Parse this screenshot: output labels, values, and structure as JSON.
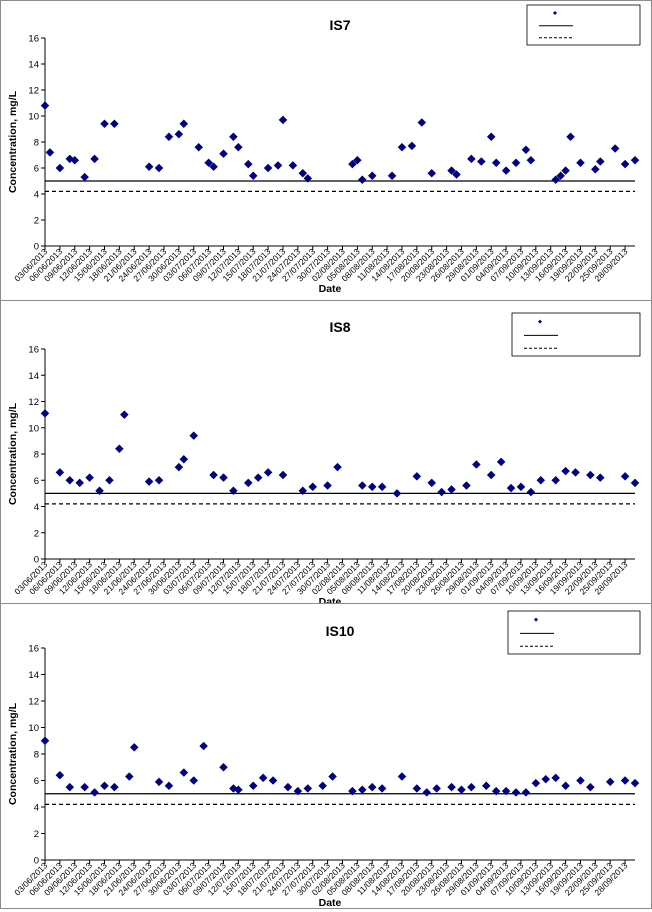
{
  "chart_data": [
    {
      "type": "scatter",
      "title": "IS7",
      "xlabel": "Date",
      "ylabel": "Concentration, mg/L",
      "ylim": [
        0,
        16
      ],
      "yticks": [
        0,
        2,
        4,
        6,
        8,
        10,
        12,
        14,
        16
      ],
      "xlim": [
        "2013-06-03",
        "2013-09-30"
      ],
      "x_tick_labels": [
        "03/06/2013",
        "06/06/2013",
        "09/06/2013",
        "12/06/2013",
        "15/06/2013",
        "18/06/2013",
        "21/06/2013",
        "24/06/2013",
        "27/06/2013",
        "30/06/2013",
        "03/07/2013",
        "06/07/2013",
        "09/07/2013",
        "12/07/2013",
        "15/07/2013",
        "18/07/2013",
        "21/07/2013",
        "24/07/2013",
        "27/07/2013",
        "30/07/2013",
        "02/08/2013",
        "05/08/2013",
        "08/08/2013",
        "11/08/2013",
        "14/08/2013",
        "17/08/2013",
        "20/08/2013",
        "23/08/2013",
        "26/08/2013",
        "29/08/2013",
        "01/09/2013",
        "04/09/2013",
        "07/09/2013",
        "10/09/2013",
        "13/09/2013",
        "16/09/2013",
        "19/09/2013",
        "22/09/2013",
        "25/09/2013",
        "28/09/2013"
      ],
      "grid": false,
      "legend_position": "top-right",
      "legend": [
        "",
        "",
        ""
      ],
      "series": [
        {
          "marker": "diamond",
          "color": "#000080",
          "x": [
            "2013-06-03",
            "2013-06-04",
            "2013-06-06",
            "2013-06-08",
            "2013-06-09",
            "2013-06-11",
            "2013-06-13",
            "2013-06-15",
            "2013-06-17",
            "2013-06-24",
            "2013-06-26",
            "2013-06-28",
            "2013-06-30",
            "2013-07-01",
            "2013-07-04",
            "2013-07-06",
            "2013-07-07",
            "2013-07-09",
            "2013-07-11",
            "2013-07-12",
            "2013-07-14",
            "2013-07-15",
            "2013-07-18",
            "2013-07-20",
            "2013-07-21",
            "2013-07-23",
            "2013-07-25",
            "2013-07-26",
            "2013-08-04",
            "2013-08-05",
            "2013-08-06",
            "2013-08-08",
            "2013-08-12",
            "2013-08-14",
            "2013-08-16",
            "2013-08-18",
            "2013-08-20",
            "2013-08-24",
            "2013-08-25",
            "2013-08-28",
            "2013-08-30",
            "2013-09-01",
            "2013-09-02",
            "2013-09-04",
            "2013-09-06",
            "2013-09-08",
            "2013-09-09",
            "2013-09-14",
            "2013-09-15",
            "2013-09-16",
            "2013-09-17",
            "2013-09-19",
            "2013-09-22",
            "2013-09-23",
            "2013-09-26",
            "2013-09-28",
            "2013-09-30"
          ],
          "y": [
            10.8,
            7.2,
            6.0,
            6.7,
            6.6,
            5.3,
            6.7,
            9.4,
            9.4,
            6.1,
            6.0,
            8.4,
            8.6,
            9.4,
            7.6,
            6.4,
            6.1,
            7.1,
            8.4,
            7.6,
            6.3,
            5.4,
            6.0,
            6.2,
            9.7,
            6.2,
            5.6,
            5.2,
            6.3,
            6.6,
            5.1,
            5.4,
            5.4,
            7.6,
            7.7,
            9.5,
            5.6,
            5.8,
            5.5,
            6.7,
            6.5,
            8.4,
            6.4,
            5.8,
            6.4,
            7.4,
            6.6,
            5.1,
            5.4,
            5.8,
            8.4,
            6.4,
            5.9,
            6.5,
            7.5,
            6.3,
            6.6
          ]
        }
      ],
      "reference_lines": [
        {
          "y": 5.0,
          "style": "solid",
          "color": "#000000"
        },
        {
          "y": 4.2,
          "style": "dashed",
          "color": "#000000"
        }
      ]
    },
    {
      "type": "scatter",
      "title": "IS8",
      "xlabel": "Date",
      "ylabel": "Concentration, mg/L",
      "ylim": [
        0,
        16
      ],
      "yticks": [
        0,
        2,
        4,
        6,
        8,
        10,
        12,
        14,
        16
      ],
      "xlim": [
        "2013-06-03",
        "2013-09-30"
      ],
      "x_tick_labels": [
        "03/06/2013",
        "06/06/2013",
        "09/06/2013",
        "12/06/2013",
        "15/06/2013",
        "18/06/2013",
        "21/06/2013",
        "24/06/2013",
        "27/06/2013",
        "30/06/2013",
        "03/07/2013",
        "06/07/2013",
        "09/07/2013",
        "12/07/2013",
        "15/07/2013",
        "18/07/2013",
        "21/07/2013",
        "24/07/2013",
        "27/07/2013",
        "30/07/2013",
        "02/08/2013",
        "05/08/2013",
        "08/08/2013",
        "11/08/2013",
        "14/08/2013",
        "17/08/2013",
        "20/08/2013",
        "23/08/2013",
        "26/08/2013",
        "29/08/2013",
        "01/09/2013",
        "04/09/2013",
        "07/09/2013",
        "10/09/2013",
        "13/09/2013",
        "16/09/2013",
        "19/09/2013",
        "22/09/2013",
        "25/09/2013",
        "28/09/2013"
      ],
      "grid": false,
      "legend_position": "top-right",
      "legend": [
        "",
        "",
        ""
      ],
      "series": [
        {
          "marker": "diamond",
          "color": "#000080",
          "x": [
            "2013-06-03",
            "2013-06-06",
            "2013-06-08",
            "2013-06-10",
            "2013-06-12",
            "2013-06-14",
            "2013-06-16",
            "2013-06-18",
            "2013-06-19",
            "2013-06-24",
            "2013-06-26",
            "2013-06-30",
            "2013-07-01",
            "2013-07-03",
            "2013-07-07",
            "2013-07-09",
            "2013-07-11",
            "2013-07-14",
            "2013-07-16",
            "2013-07-18",
            "2013-07-21",
            "2013-07-25",
            "2013-07-27",
            "2013-07-30",
            "2013-08-01",
            "2013-08-06",
            "2013-08-08",
            "2013-08-10",
            "2013-08-13",
            "2013-08-17",
            "2013-08-20",
            "2013-08-22",
            "2013-08-24",
            "2013-08-27",
            "2013-08-29",
            "2013-09-01",
            "2013-09-03",
            "2013-09-05",
            "2013-09-07",
            "2013-09-09",
            "2013-09-11",
            "2013-09-14",
            "2013-09-16",
            "2013-09-18",
            "2013-09-21",
            "2013-09-23",
            "2013-09-28",
            "2013-09-30"
          ],
          "y": [
            11.1,
            6.6,
            6.0,
            5.8,
            6.2,
            5.2,
            6.0,
            8.4,
            11.0,
            5.9,
            6.0,
            7.0,
            7.6,
            9.4,
            6.4,
            6.2,
            5.2,
            5.8,
            6.2,
            6.6,
            6.4,
            5.2,
            5.5,
            5.6,
            7.0,
            5.6,
            5.5,
            5.5,
            5.0,
            6.3,
            5.8,
            5.1,
            5.3,
            5.6,
            7.2,
            6.4,
            7.4,
            5.4,
            5.5,
            5.1,
            6.0,
            6.0,
            6.7,
            6.6,
            6.4,
            6.2,
            6.3,
            5.8
          ]
        }
      ],
      "reference_lines": [
        {
          "y": 5.0,
          "style": "solid",
          "color": "#000000"
        },
        {
          "y": 4.2,
          "style": "dashed",
          "color": "#000000"
        }
      ]
    },
    {
      "type": "scatter",
      "title": "IS10",
      "xlabel": "Date",
      "ylabel": "Concentration, mg/L",
      "ylim": [
        0,
        16
      ],
      "yticks": [
        0,
        2,
        4,
        6,
        8,
        10,
        12,
        14,
        16
      ],
      "xlim": [
        "2013-06-03",
        "2013-09-30"
      ],
      "x_tick_labels": [
        "03/06/2013",
        "06/06/2013",
        "09/06/2013",
        "12/06/2013",
        "15/06/2013",
        "18/06/2013",
        "21/06/2013",
        "24/06/2013",
        "27/06/2013",
        "30/06/2013",
        "03/07/2013",
        "06/07/2013",
        "09/07/2013",
        "12/07/2013",
        "15/07/2013",
        "18/07/2013",
        "21/07/2013",
        "24/07/2013",
        "27/07/2013",
        "30/07/2013",
        "02/08/2013",
        "05/08/2013",
        "08/08/2013",
        "11/08/2013",
        "14/08/2013",
        "17/08/2013",
        "20/08/2013",
        "23/08/2013",
        "26/08/2013",
        "29/08/2013",
        "01/09/2013",
        "04/09/2013",
        "07/09/2013",
        "10/09/2013",
        "13/09/2013",
        "16/09/2013",
        "19/09/2013",
        "22/09/2013",
        "25/09/2013",
        "28/09/2013"
      ],
      "grid": false,
      "legend_position": "top-right",
      "legend": [
        "",
        "",
        ""
      ],
      "series": [
        {
          "marker": "diamond",
          "color": "#000080",
          "x": [
            "2013-06-03",
            "2013-06-06",
            "2013-06-08",
            "2013-06-11",
            "2013-06-13",
            "2013-06-15",
            "2013-06-17",
            "2013-06-20",
            "2013-06-21",
            "2013-06-26",
            "2013-06-28",
            "2013-07-01",
            "2013-07-03",
            "2013-07-05",
            "2013-07-09",
            "2013-07-11",
            "2013-07-12",
            "2013-07-15",
            "2013-07-17",
            "2013-07-19",
            "2013-07-22",
            "2013-07-24",
            "2013-07-26",
            "2013-07-29",
            "2013-07-31",
            "2013-08-04",
            "2013-08-06",
            "2013-08-08",
            "2013-08-10",
            "2013-08-14",
            "2013-08-17",
            "2013-08-19",
            "2013-08-21",
            "2013-08-24",
            "2013-08-26",
            "2013-08-28",
            "2013-08-31",
            "2013-09-02",
            "2013-09-04",
            "2013-09-06",
            "2013-09-08",
            "2013-09-10",
            "2013-09-12",
            "2013-09-14",
            "2013-09-16",
            "2013-09-19",
            "2013-09-21",
            "2013-09-25",
            "2013-09-28",
            "2013-09-30"
          ],
          "y": [
            9.0,
            6.4,
            5.5,
            5.5,
            5.1,
            5.6,
            5.5,
            6.3,
            8.5,
            5.9,
            5.6,
            6.6,
            6.0,
            8.6,
            7.0,
            5.4,
            5.3,
            5.6,
            6.2,
            6.0,
            5.5,
            5.2,
            5.4,
            5.6,
            6.3,
            5.2,
            5.3,
            5.5,
            5.4,
            6.3,
            5.4,
            5.1,
            5.4,
            5.5,
            5.3,
            5.5,
            5.6,
            5.2,
            5.2,
            5.1,
            5.1,
            5.8,
            6.1,
            6.2,
            5.6,
            6.0,
            5.5,
            5.9,
            6.0,
            5.8
          ]
        }
      ],
      "reference_lines": [
        {
          "y": 5.0,
          "style": "solid",
          "color": "#000000"
        },
        {
          "y": 4.2,
          "style": "dashed",
          "color": "#000000"
        }
      ]
    }
  ]
}
